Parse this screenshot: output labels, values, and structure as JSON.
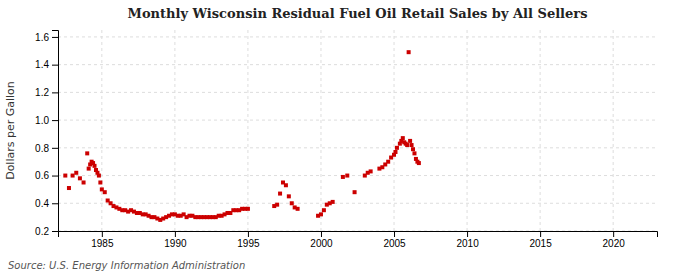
{
  "chart_data": {
    "type": "scatter",
    "title": "Monthly Wisconsin Residual Fuel Oil Retail Sales by All Sellers",
    "ylabel": "Dollars per Gallon",
    "annotations": [
      "Source: U.S. Energy Information Administration"
    ],
    "color": "#cc0000",
    "marker": "square",
    "grid": true,
    "xlim": [
      1982.0,
      2023.0
    ],
    "ylim": [
      0.2,
      1.65
    ],
    "xticks": [
      1985,
      1990,
      1995,
      2000,
      2005,
      2010,
      2015,
      2020
    ],
    "yticks": [
      0.2,
      0.4,
      0.6,
      0.8,
      {
        "value": 1.0,
        "label": "1.0"
      },
      1.2,
      1.4,
      1.6
    ],
    "x": [
      1982.5,
      1982.75,
      1983.0,
      1983.25,
      1983.5,
      1983.75,
      1984.0,
      1984.1,
      1984.2,
      1984.3,
      1984.4,
      1984.5,
      1984.6,
      1984.7,
      1984.8,
      1984.9,
      1985.0,
      1985.2,
      1985.4,
      1985.6,
      1985.8,
      1986.0,
      1986.2,
      1986.4,
      1986.6,
      1986.8,
      1987.0,
      1987.2,
      1987.4,
      1987.6,
      1987.8,
      1988.0,
      1988.2,
      1988.4,
      1988.6,
      1988.8,
      1989.0,
      1989.2,
      1989.4,
      1989.6,
      1989.8,
      1990.0,
      1990.2,
      1990.4,
      1990.6,
      1990.8,
      1991.0,
      1991.2,
      1991.4,
      1991.6,
      1991.8,
      1992.0,
      1992.2,
      1992.4,
      1992.6,
      1992.8,
      1993.0,
      1993.2,
      1993.4,
      1993.6,
      1993.8,
      1994.0,
      1994.2,
      1994.4,
      1994.6,
      1994.8,
      1995.0,
      1996.8,
      1997.0,
      1997.2,
      1997.4,
      1997.6,
      1997.8,
      1998.0,
      1998.2,
      1998.4,
      1999.8,
      2000.0,
      2000.2,
      2000.4,
      2000.6,
      2000.8,
      2001.5,
      2001.8,
      2002.3,
      2003.0,
      2003.2,
      2003.4,
      2004.0,
      2004.2,
      2004.4,
      2004.6,
      2004.8,
      2005.0,
      2005.1,
      2005.2,
      2005.4,
      2005.5,
      2005.6,
      2005.7,
      2005.8,
      2005.9,
      2006.0,
      2006.1,
      2006.2,
      2006.3,
      2006.4,
      2006.5,
      2006.6,
      2006.7
    ],
    "values": [
      0.6,
      0.51,
      0.6,
      0.62,
      0.58,
      0.55,
      0.76,
      0.65,
      0.68,
      0.7,
      0.69,
      0.67,
      0.64,
      0.62,
      0.6,
      0.55,
      0.5,
      0.48,
      0.42,
      0.4,
      0.38,
      0.37,
      0.36,
      0.35,
      0.35,
      0.34,
      0.35,
      0.34,
      0.33,
      0.33,
      0.32,
      0.32,
      0.31,
      0.3,
      0.3,
      0.29,
      0.28,
      0.29,
      0.3,
      0.31,
      0.32,
      0.32,
      0.31,
      0.31,
      0.32,
      0.3,
      0.31,
      0.31,
      0.3,
      0.3,
      0.3,
      0.3,
      0.3,
      0.3,
      0.3,
      0.3,
      0.31,
      0.31,
      0.32,
      0.33,
      0.33,
      0.35,
      0.35,
      0.35,
      0.36,
      0.36,
      0.36,
      0.38,
      0.39,
      0.47,
      0.55,
      0.53,
      0.45,
      0.4,
      0.37,
      0.36,
      0.31,
      0.32,
      0.35,
      0.39,
      0.4,
      0.41,
      0.59,
      0.6,
      0.48,
      0.6,
      0.62,
      0.63,
      0.65,
      0.66,
      0.68,
      0.7,
      0.73,
      0.75,
      0.77,
      0.8,
      0.83,
      0.85,
      0.87,
      0.84,
      0.83,
      0.82,
      1.49,
      0.85,
      0.82,
      0.79,
      0.76,
      0.72,
      0.7,
      0.69
    ]
  }
}
